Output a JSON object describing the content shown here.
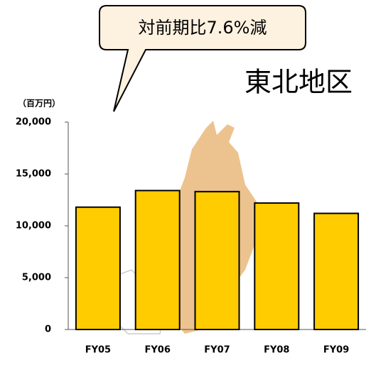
{
  "chart_data": {
    "type": "bar",
    "title": "東北地区",
    "annotation": "対前期比7.6%減",
    "y_label": "（百万円）",
    "categories": [
      "FY05",
      "FY06",
      "FY07",
      "FY08",
      "FY09"
    ],
    "values": [
      11800,
      13400,
      13300,
      12200,
      11200
    ],
    "color": "#ffcc00",
    "ylim": [
      0,
      20000
    ],
    "yticks": [
      {
        "value": 0,
        "label": "0"
      },
      {
        "value": 5000,
        "label": "5,000"
      },
      {
        "value": 10000,
        "label": "10,000"
      },
      {
        "value": 15000,
        "label": "15,000"
      },
      {
        "value": 20000,
        "label": "20,000"
      }
    ],
    "grid": false
  }
}
